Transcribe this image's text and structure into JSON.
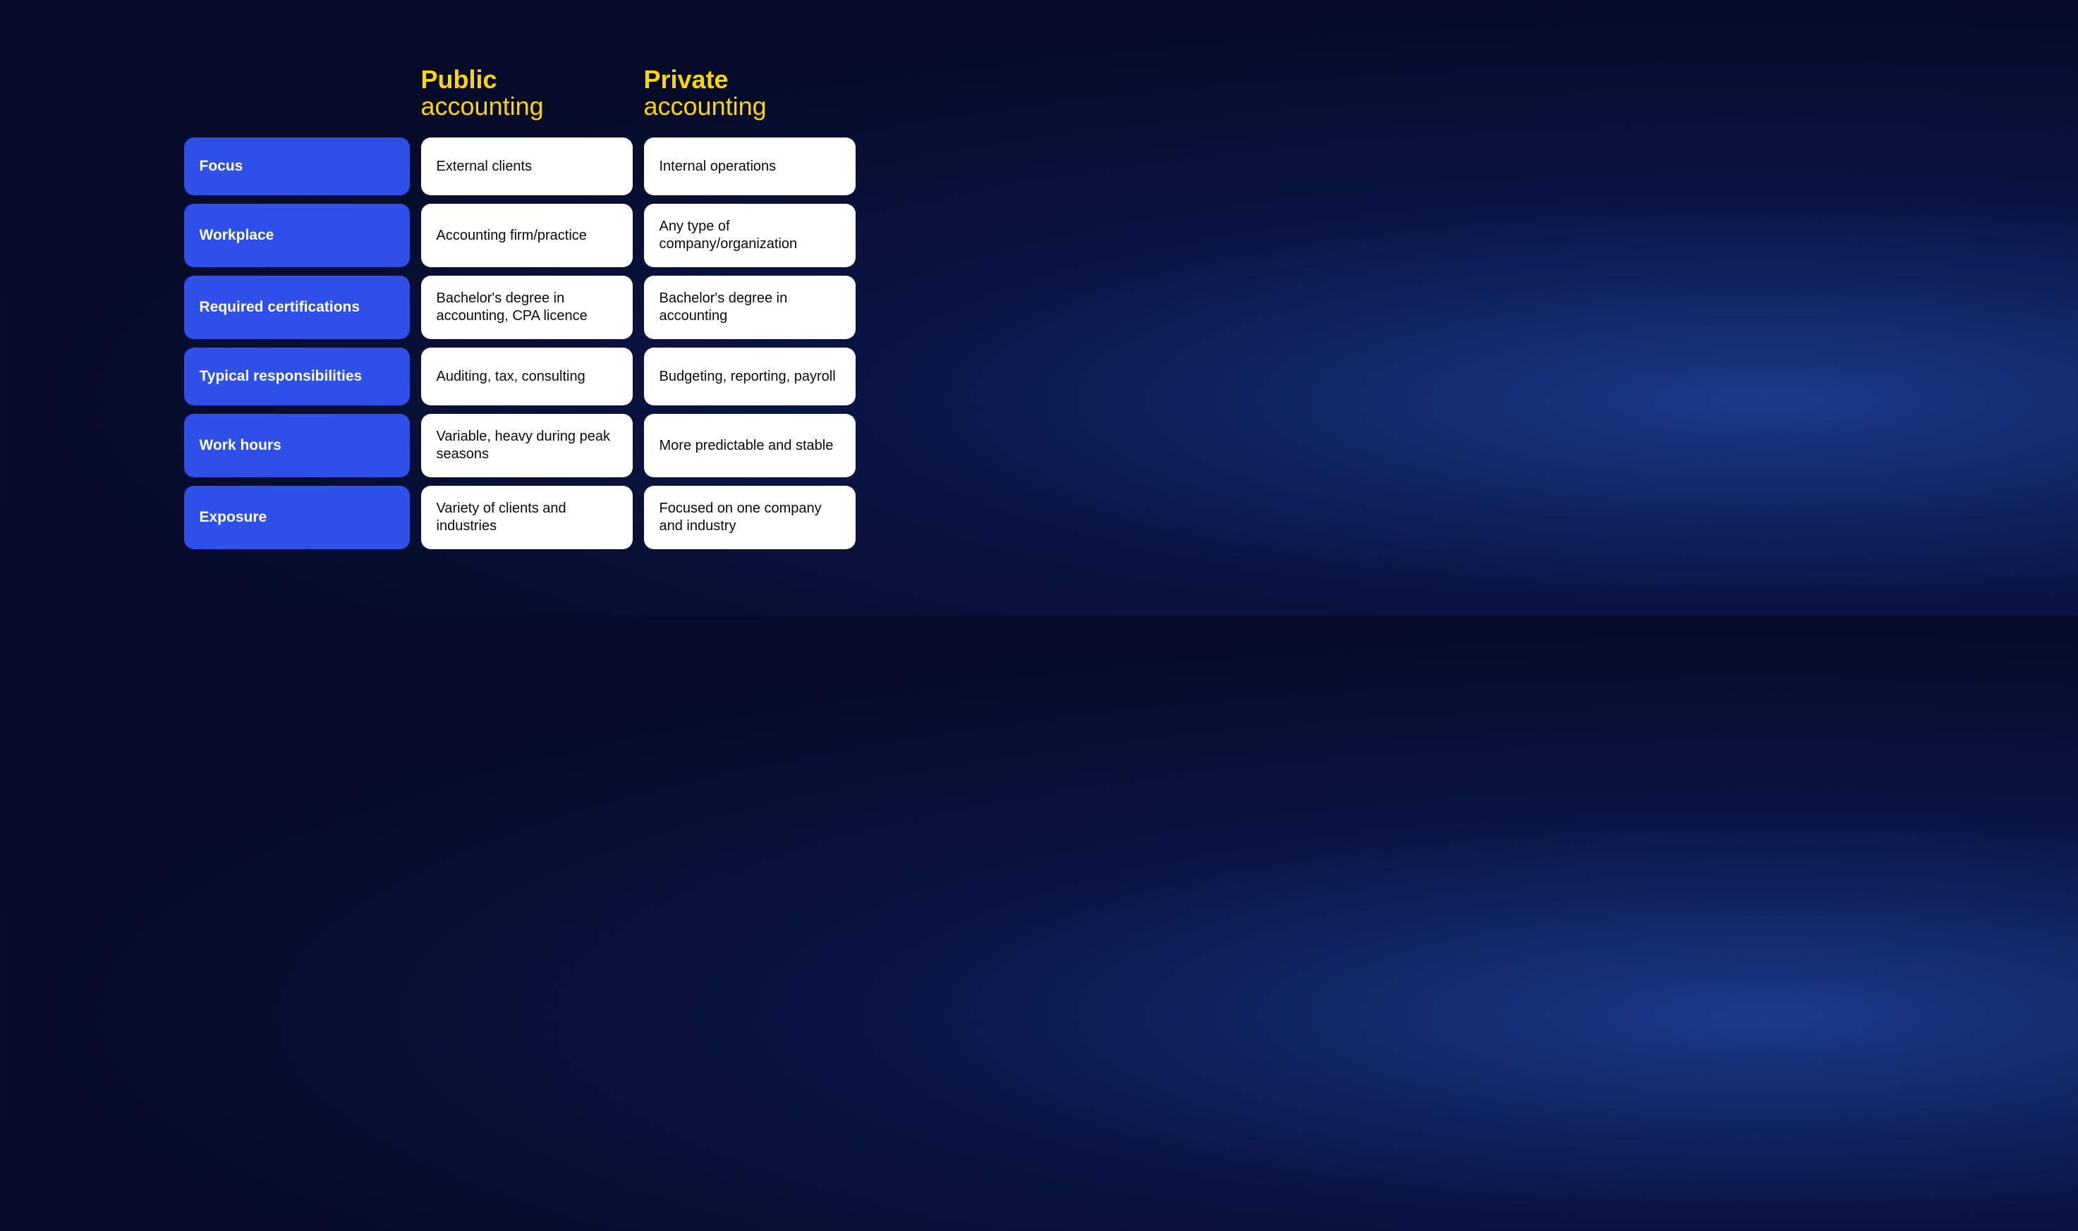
{
  "colors": {
    "label_bg": "#2e4fe8",
    "label_text": "#ffffff",
    "value_bg": "#ffffff",
    "value_text": "#0a0a0a",
    "header_accent": "#ffd500"
  },
  "columns": [
    {
      "bold": "Public",
      "light": "accounting"
    },
    {
      "bold": "Private",
      "light": "accounting"
    }
  ],
  "rows": [
    {
      "label": "Focus",
      "values": [
        "External clients",
        "Internal operations"
      ]
    },
    {
      "label": "Workplace",
      "values": [
        "Accounting firm/practice",
        "Any type of company/organization"
      ]
    },
    {
      "label": "Required certifications",
      "values": [
        "Bachelor's degree in accounting, CPA licence",
        "Bachelor's degree in accounting"
      ]
    },
    {
      "label": "Typical responsibilities",
      "values": [
        "Auditing, tax, consulting",
        "Budgeting, reporting, payroll"
      ]
    },
    {
      "label": "Work hours",
      "values": [
        "Variable, heavy during peak seasons",
        "More predictable and stable"
      ]
    },
    {
      "label": "Exposure",
      "values": [
        "Variety of clients and industries",
        "Focused on one company and industry"
      ]
    }
  ]
}
